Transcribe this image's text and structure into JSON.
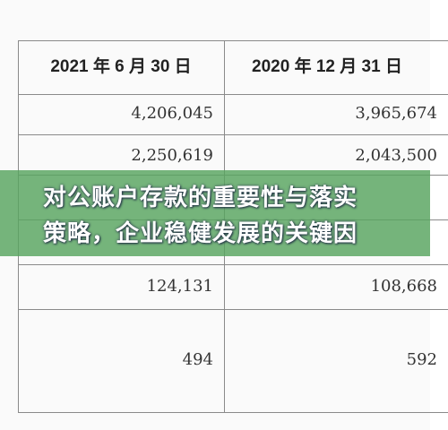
{
  "table": {
    "header": [
      "2021 年 6 月 30 日",
      "2020 年 12 月 31 日"
    ],
    "rows": [
      [
        "4,206,045",
        "3,965,674"
      ],
      [
        "2,250,619",
        "2,043,500"
      ],
      [
        "124,131",
        "108,668"
      ],
      [
        "494",
        "592"
      ]
    ]
  },
  "banner": {
    "lines": [
      "对公账户存款的重要性与落实",
      "策略，企业稳健发展的关键因"
    ]
  }
}
